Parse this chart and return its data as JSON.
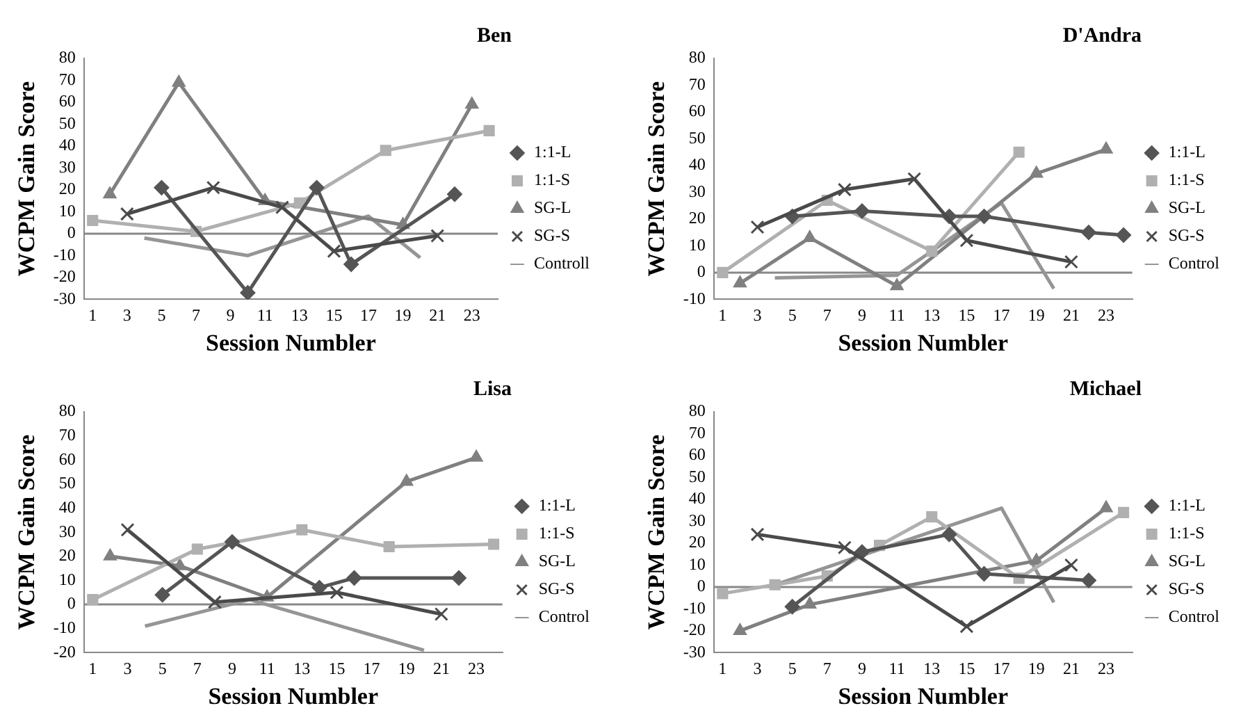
{
  "chart_data": [
    {
      "type": "line",
      "title": "Ben",
      "ref_lines": [
        {
          "axis": "y",
          "value": 0
        }
      ],
      "xlabel": "Session Numbler",
      "ylabel": "WCPM Gain Score",
      "xlim": [
        0.5,
        24.5
      ],
      "xticks": [
        1,
        3,
        5,
        7,
        9,
        11,
        13,
        15,
        17,
        19,
        21,
        23
      ],
      "ylim": [
        -30,
        80
      ],
      "yticks": [
        -30,
        -20,
        -10,
        0,
        10,
        20,
        30,
        40,
        50,
        60,
        70,
        80
      ],
      "legend": "right",
      "series": [
        {
          "name": "1:1-L",
          "color": "#555555",
          "marker": "diamond",
          "x": [
            5,
            10,
            14,
            16,
            22
          ],
          "values": [
            21,
            -27,
            21,
            -14,
            18
          ]
        },
        {
          "name": "1:1-S",
          "color": "#b0b0b0",
          "marker": "square",
          "x": [
            1,
            7,
            13,
            18,
            24
          ],
          "values": [
            6,
            1,
            14,
            38,
            47
          ]
        },
        {
          "name": "SG-L",
          "color": "#808080",
          "marker": "triangle",
          "x": [
            2,
            6,
            11,
            19,
            23
          ],
          "values": [
            18,
            69,
            15,
            4,
            59
          ]
        },
        {
          "name": "SG-S",
          "color": "#4a4a4a",
          "marker": "cross",
          "x": [
            3,
            8,
            12,
            15,
            21
          ],
          "values": [
            9,
            21,
            12,
            -8,
            -1
          ]
        },
        {
          "name": "Controll",
          "color": "#959595",
          "marker": "none",
          "x": [
            4,
            10,
            17,
            20
          ],
          "values": [
            -2,
            -10,
            8,
            -11
          ]
        }
      ]
    },
    {
      "type": "line",
      "title": "D'Andra",
      "ref_lines": [
        {
          "axis": "y",
          "value": 0
        }
      ],
      "xlabel": "Session Numbler",
      "ylabel": "WCPM Gain Score",
      "xlim": [
        0.5,
        24.5
      ],
      "xticks": [
        1,
        3,
        5,
        7,
        9,
        11,
        13,
        15,
        17,
        19,
        21,
        23
      ],
      "ylim": [
        -10,
        80
      ],
      "yticks": [
        -10,
        0,
        10,
        20,
        30,
        40,
        50,
        60,
        70,
        80
      ],
      "legend": "right",
      "series": [
        {
          "name": "1:1-L",
          "color": "#555555",
          "marker": "diamond",
          "x": [
            5,
            9,
            14,
            16,
            22,
            24
          ],
          "values": [
            21,
            23,
            21,
            21,
            15,
            14
          ]
        },
        {
          "name": "1:1-S",
          "color": "#b0b0b0",
          "marker": "square",
          "x": [
            1,
            7,
            13,
            18
          ],
          "values": [
            0,
            27,
            8,
            45
          ]
        },
        {
          "name": "SG-L",
          "color": "#808080",
          "marker": "triangle",
          "x": [
            2,
            6,
            11,
            19,
            23
          ],
          "values": [
            -4,
            13,
            -5,
            37,
            46
          ]
        },
        {
          "name": "SG-S",
          "color": "#4a4a4a",
          "marker": "cross",
          "x": [
            3,
            8,
            12,
            15,
            21
          ],
          "values": [
            17,
            31,
            35,
            12,
            4
          ]
        },
        {
          "name": "Control",
          "color": "#959595",
          "marker": "none",
          "x": [
            4,
            11,
            17,
            20
          ],
          "values": [
            -2,
            -1,
            26,
            -6
          ]
        }
      ]
    },
    {
      "type": "line",
      "title": "Lisa",
      "ref_lines": [
        {
          "axis": "y",
          "value": 0
        }
      ],
      "xlabel": "Session Numbler",
      "ylabel": "WCPM Gain Score",
      "xlim": [
        0.5,
        24.5
      ],
      "xticks": [
        1,
        3,
        5,
        7,
        9,
        11,
        13,
        15,
        17,
        19,
        21,
        23
      ],
      "ylim": [
        -20,
        80
      ],
      "yticks": [
        -20,
        -10,
        0,
        10,
        20,
        30,
        40,
        50,
        60,
        70,
        80
      ],
      "legend": "right",
      "series": [
        {
          "name": "1:1-L",
          "color": "#555555",
          "marker": "diamond",
          "x": [
            5,
            9,
            14,
            16,
            22
          ],
          "values": [
            4,
            26,
            7,
            11,
            11
          ]
        },
        {
          "name": "1:1-S",
          "color": "#b0b0b0",
          "marker": "square",
          "x": [
            1,
            7,
            13,
            18,
            24
          ],
          "values": [
            2,
            23,
            31,
            24,
            25
          ]
        },
        {
          "name": "SG-L",
          "color": "#808080",
          "marker": "triangle",
          "x": [
            2,
            6,
            11,
            19,
            23
          ],
          "values": [
            20,
            16,
            3,
            51,
            61
          ]
        },
        {
          "name": "SG-S",
          "color": "#4a4a4a",
          "marker": "cross",
          "x": [
            3,
            8,
            15,
            21
          ],
          "values": [
            31,
            1,
            5,
            -4
          ]
        },
        {
          "name": "Control",
          "color": "#959595",
          "marker": "none",
          "x": [
            4,
            10,
            20
          ],
          "values": [
            -9,
            2,
            -19
          ]
        }
      ]
    },
    {
      "type": "line",
      "title": "Michael",
      "ref_lines": [
        {
          "axis": "y",
          "value": 0
        }
      ],
      "xlabel": "Session Numbler",
      "ylabel": "WCPM Gain Score",
      "xlim": [
        0.5,
        24.5
      ],
      "xticks": [
        1,
        3,
        5,
        7,
        9,
        11,
        13,
        15,
        17,
        19,
        21,
        23
      ],
      "ylim": [
        -30,
        80
      ],
      "yticks": [
        -30,
        -20,
        -10,
        0,
        10,
        20,
        30,
        40,
        50,
        60,
        70,
        80
      ],
      "legend": "right",
      "series": [
        {
          "name": "1:1-L",
          "color": "#555555",
          "marker": "diamond",
          "x": [
            5,
            9,
            14,
            16,
            22
          ],
          "values": [
            -9,
            16,
            24,
            6,
            3
          ]
        },
        {
          "name": "1:1-S",
          "color": "#b0b0b0",
          "marker": "square",
          "x": [
            1,
            4,
            7,
            10,
            13,
            18,
            24
          ],
          "values": [
            -3,
            1,
            5,
            19,
            32,
            4,
            34
          ]
        },
        {
          "name": "SG-L",
          "color": "#808080",
          "marker": "triangle",
          "x": [
            2,
            6,
            19,
            23
          ],
          "values": [
            -20,
            -8,
            12,
            36
          ]
        },
        {
          "name": "SG-S",
          "color": "#4a4a4a",
          "marker": "cross",
          "x": [
            3,
            8,
            15,
            21
          ],
          "values": [
            24,
            18,
            -18,
            10
          ]
        },
        {
          "name": "Control",
          "color": "#959595",
          "marker": "none",
          "x": [
            4,
            17,
            20
          ],
          "values": [
            1,
            36,
            -7
          ]
        }
      ]
    }
  ]
}
